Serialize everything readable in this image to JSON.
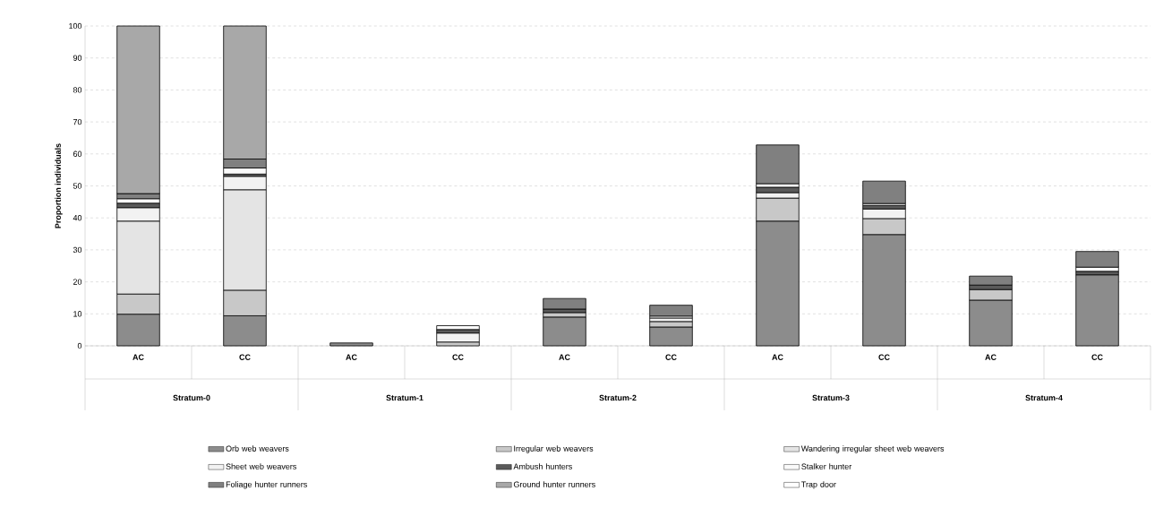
{
  "chart_data": {
    "type": "bar",
    "stacked": true,
    "ylabel": "Proportion individuals",
    "categories": [
      "AC",
      "CC",
      "AC",
      "CC",
      "AC",
      "CC",
      "AC",
      "CC",
      "AC",
      "CC"
    ],
    "annotations": [
      "Stratum-0",
      "Stratum-1",
      "Stratum-2",
      "Stratum-3",
      "Stratum-4"
    ],
    "series": [
      {
        "name": "Orb web weavers",
        "color": "#8c8c8c",
        "values": [
          9.9,
          9.4,
          0.9,
          null,
          9.0,
          5.9,
          39.0,
          34.8,
          14.3,
          22.2
        ]
      },
      {
        "name": "Irregular web weavers",
        "color": "#c8c8c8",
        "values": [
          6.3,
          8.0,
          null,
          1.2,
          1.4,
          1.7,
          7.2,
          5.0,
          3.3,
          null
        ]
      },
      {
        "name": "Wandering irregular sheet web weavers",
        "color": "#e4e4e4",
        "values": [
          22.8,
          31.4,
          null,
          null,
          null,
          null,
          null,
          null,
          null,
          null
        ]
      },
      {
        "name": "Sheet web weavers",
        "color": "#f2f2f2",
        "values": [
          4.2,
          4.2,
          null,
          2.8,
          null,
          1.1,
          1.7,
          3.0,
          null,
          null
        ]
      },
      {
        "name": "Ambush hunters",
        "color": "#5a5a5a",
        "values": [
          1.4,
          0.7,
          null,
          1.1,
          1.1,
          null,
          1.7,
          1.1,
          1.4,
          1.1
        ]
      },
      {
        "name": "Stalker hunter",
        "color": "#fafafa",
        "values": [
          1.4,
          1.9,
          null,
          1.2,
          null,
          0.6,
          1.1,
          0.6,
          null,
          1.3
        ]
      },
      {
        "name": "Foliage hunter runners",
        "color": "#808080",
        "values": [
          1.6,
          2.8,
          null,
          null,
          3.3,
          3.4,
          12.1,
          7.0,
          2.8,
          4.9
        ]
      },
      {
        "name": "Ground hunter runners",
        "color": "#a8a8a8",
        "values": [
          52.4,
          41.6,
          null,
          null,
          null,
          null,
          null,
          null,
          null,
          null
        ]
      },
      {
        "name": "Trap door",
        "color": "#ffffff",
        "values": [
          null,
          null,
          null,
          null,
          null,
          null,
          null,
          null,
          null,
          null
        ]
      }
    ],
    "ylim": [
      0,
      100
    ],
    "yticks": [
      0,
      10,
      20,
      30,
      40,
      50,
      60,
      70,
      80,
      90,
      100
    ],
    "grid": "y",
    "legend": "bottom"
  }
}
